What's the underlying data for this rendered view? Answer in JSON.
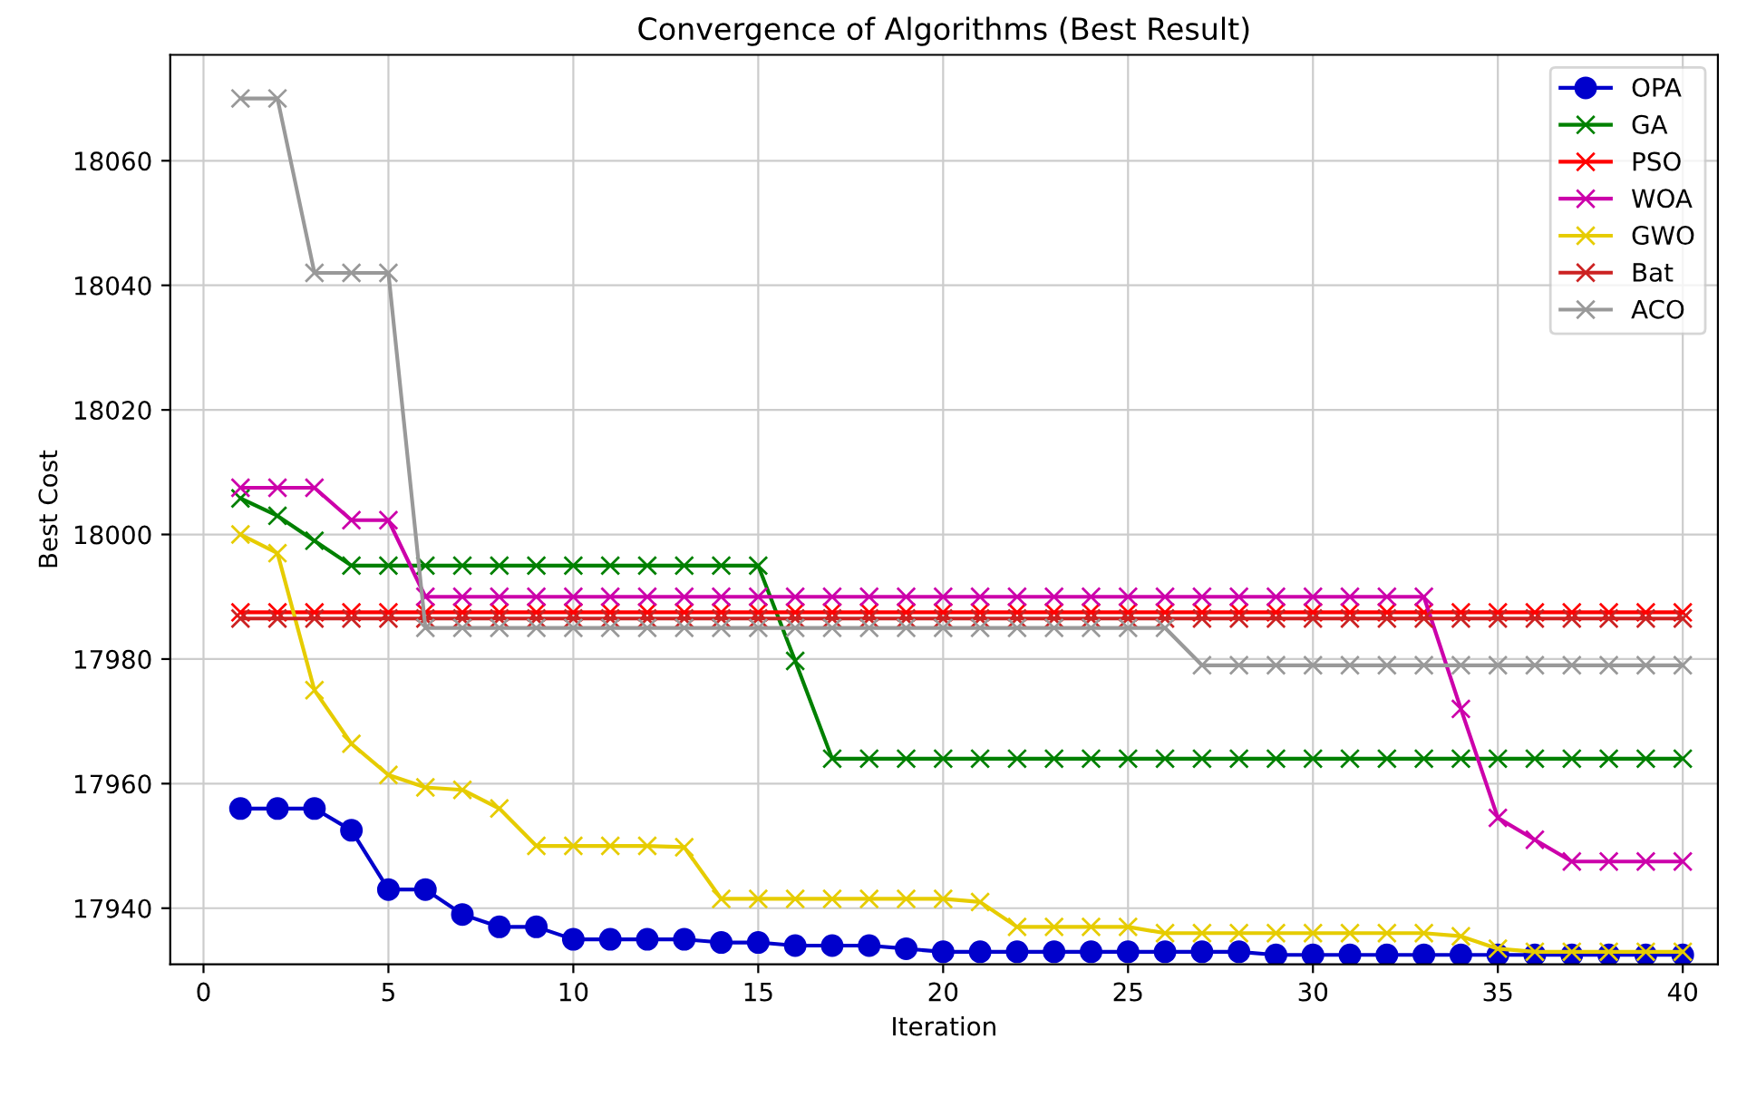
{
  "chart_data": {
    "type": "line",
    "title": "Convergence of Algorithms (Best Result)",
    "xlabel": "Iteration",
    "ylabel": "Best Cost",
    "x": [
      1,
      2,
      3,
      4,
      5,
      6,
      7,
      8,
      9,
      10,
      11,
      12,
      13,
      14,
      15,
      16,
      17,
      18,
      19,
      20,
      21,
      22,
      23,
      24,
      25,
      26,
      27,
      28,
      29,
      30,
      31,
      32,
      33,
      34,
      35,
      36,
      37,
      38,
      39,
      40
    ],
    "series": [
      {
        "name": "OPA",
        "color": "#0000cc",
        "marker": "circle",
        "values": [
          17956,
          17956,
          17956,
          17952.5,
          17943,
          17943,
          17939,
          17937,
          17937,
          17935,
          17935,
          17935,
          17935,
          17934.5,
          17934.5,
          17934,
          17934,
          17934,
          17933.5,
          17933,
          17933,
          17933,
          17933,
          17933,
          17933,
          17933,
          17933,
          17933,
          17932.5,
          17932.5,
          17932.5,
          17932.5,
          17932.5,
          17932.5,
          17932.5,
          17932.5,
          17932.5,
          17932.5,
          17932.5,
          17932.5
        ]
      },
      {
        "name": "GA",
        "color": "#008000",
        "marker": "cross",
        "values": [
          18005.8,
          18003,
          17999,
          17995,
          17995,
          17995,
          17995,
          17995,
          17995,
          17995,
          17995,
          17995,
          17995,
          17995,
          17995,
          17979.7,
          17964,
          17964,
          17964,
          17964,
          17964,
          17964,
          17964,
          17964,
          17964,
          17964,
          17964,
          17964,
          17964,
          17964,
          17964,
          17964,
          17964,
          17964,
          17964,
          17964,
          17964,
          17964,
          17964,
          17964
        ]
      },
      {
        "name": "PSO",
        "color": "#ff0000",
        "marker": "cross",
        "values": [
          17987.5,
          17987.5,
          17987.5,
          17987.5,
          17987.5,
          17987.5,
          17987.5,
          17987.5,
          17987.5,
          17987.5,
          17987.5,
          17987.5,
          17987.5,
          17987.5,
          17987.5,
          17987.5,
          17987.5,
          17987.5,
          17987.5,
          17987.5,
          17987.5,
          17987.5,
          17987.5,
          17987.5,
          17987.5,
          17987.5,
          17987.5,
          17987.5,
          17987.5,
          17987.5,
          17987.5,
          17987.5,
          17987.5,
          17987.5,
          17987.5,
          17987.5,
          17987.5,
          17987.5,
          17987.5,
          17987.5
        ]
      },
      {
        "name": "WOA",
        "color": "#cc00aa",
        "marker": "cross",
        "values": [
          18007.5,
          18007.5,
          18007.5,
          18002.3,
          18002.3,
          17990,
          17990,
          17990,
          17990,
          17990,
          17990,
          17990,
          17990,
          17990,
          17990,
          17990,
          17990,
          17990,
          17990,
          17990,
          17990,
          17990,
          17990,
          17990,
          17990,
          17990,
          17990,
          17990,
          17990,
          17990,
          17990,
          17990,
          17990,
          17972,
          17954.5,
          17951,
          17947.5,
          17947.5,
          17947.5,
          17947.5
        ]
      },
      {
        "name": "GWO",
        "color": "#e6cc00",
        "marker": "cross",
        "values": [
          18000,
          17997,
          17975,
          17966.4,
          17961.4,
          17959.4,
          17959,
          17956,
          17950,
          17950,
          17950,
          17950,
          17949.8,
          17941.5,
          17941.5,
          17941.5,
          17941.5,
          17941.5,
          17941.5,
          17941.5,
          17941,
          17937,
          17937,
          17937,
          17937,
          17936,
          17936,
          17936,
          17936,
          17936,
          17936,
          17936,
          17936,
          17935.5,
          17933.5,
          17933,
          17933,
          17933,
          17933,
          17933
        ]
      },
      {
        "name": "Bat",
        "color": "#cc2222",
        "marker": "cross",
        "values": [
          17986.5,
          17986.5,
          17986.5,
          17986.5,
          17986.5,
          17986.5,
          17986.5,
          17986.5,
          17986.5,
          17986.5,
          17986.5,
          17986.5,
          17986.5,
          17986.5,
          17986.5,
          17986.5,
          17986.5,
          17986.5,
          17986.5,
          17986.5,
          17986.5,
          17986.5,
          17986.5,
          17986.5,
          17986.5,
          17986.5,
          17986.5,
          17986.5,
          17986.5,
          17986.5,
          17986.5,
          17986.5,
          17986.5,
          17986.5,
          17986.5,
          17986.5,
          17986.5,
          17986.5,
          17986.5,
          17986.5
        ]
      },
      {
        "name": "ACO",
        "color": "#999999",
        "marker": "cross",
        "values": [
          18070,
          18070,
          18042,
          18042,
          18042,
          17985,
          17985,
          17985,
          17985,
          17985,
          17985,
          17985,
          17985,
          17985,
          17985,
          17985,
          17985,
          17985,
          17985,
          17985,
          17985,
          17985,
          17985,
          17985,
          17985,
          17985,
          17979,
          17979,
          17979,
          17979,
          17979,
          17979,
          17979,
          17979,
          17979,
          17979,
          17979,
          17979,
          17979,
          17979
        ]
      }
    ],
    "xlim": [
      -0.9,
      40.95
    ],
    "ylim": [
      17931,
      18077
    ],
    "xticks": [
      0,
      5,
      10,
      15,
      20,
      25,
      30,
      35,
      40
    ],
    "yticks": [
      17940,
      17960,
      17980,
      18000,
      18020,
      18040,
      18060
    ],
    "grid": true,
    "legend": "top right"
  }
}
